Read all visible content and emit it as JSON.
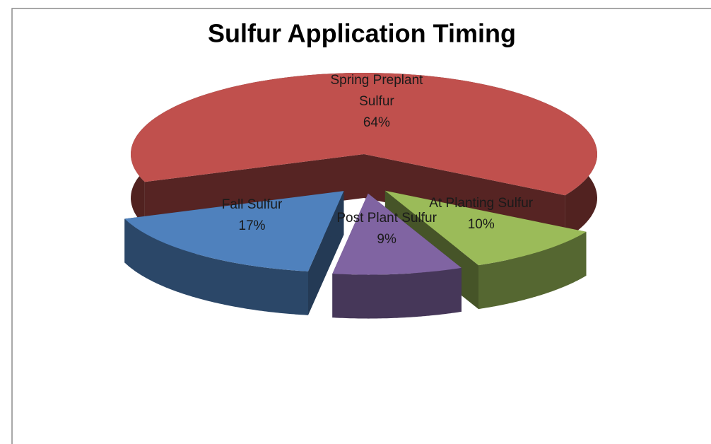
{
  "chart_data": {
    "type": "pie3d",
    "title": "Sulfur Application Timing",
    "categories": [
      "Spring Preplant Sulfur",
      "At Planting Sulfur",
      "Post Plant Sulfur",
      "Fall Sulfur"
    ],
    "values": [
      64,
      10,
      9,
      17
    ],
    "value_labels": [
      "64%",
      "10%",
      "9%",
      "17%"
    ],
    "colors": [
      "#c0504d",
      "#9bbb59",
      "#8064a2",
      "#4f81bd"
    ]
  }
}
